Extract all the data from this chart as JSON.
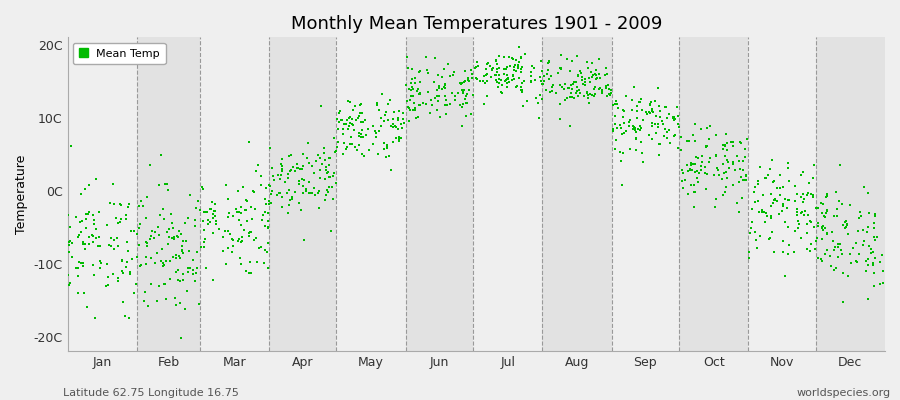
{
  "title": "Monthly Mean Temperatures 1901 - 2009",
  "ylabel": "Temperature",
  "xlabel_labels": [
    "Jan",
    "Feb",
    "Mar",
    "Apr",
    "May",
    "Jun",
    "Jul",
    "Aug",
    "Sep",
    "Oct",
    "Nov",
    "Dec"
  ],
  "ytick_labels": [
    "-20C",
    "-10C",
    "0C",
    "10C",
    "20C"
  ],
  "ytick_values": [
    -20,
    -10,
    0,
    10,
    20
  ],
  "ylim": [
    -22,
    21
  ],
  "dot_color": "#00BB00",
  "dot_size": 3,
  "bg_light": "#EFEFEF",
  "bg_dark": "#E2E2E2",
  "grid_color": "#999999",
  "subtitle_left": "Latitude 62.75 Longitude 16.75",
  "subtitle_right": "worldspecies.org",
  "legend_label": "Mean Temp",
  "monthly_means": [
    -7.5,
    -8.0,
    -4.5,
    2.0,
    8.5,
    13.5,
    16.0,
    14.5,
    9.0,
    3.5,
    -2.5,
    -6.5
  ],
  "monthly_stds": [
    4.2,
    4.5,
    3.5,
    2.5,
    2.2,
    2.0,
    1.8,
    1.8,
    2.2,
    2.5,
    3.0,
    3.5
  ],
  "days_in_month": [
    31,
    28,
    31,
    30,
    31,
    30,
    31,
    31,
    30,
    31,
    30,
    31
  ],
  "n_years": 109,
  "start_year": 1901,
  "end_year": 2009
}
